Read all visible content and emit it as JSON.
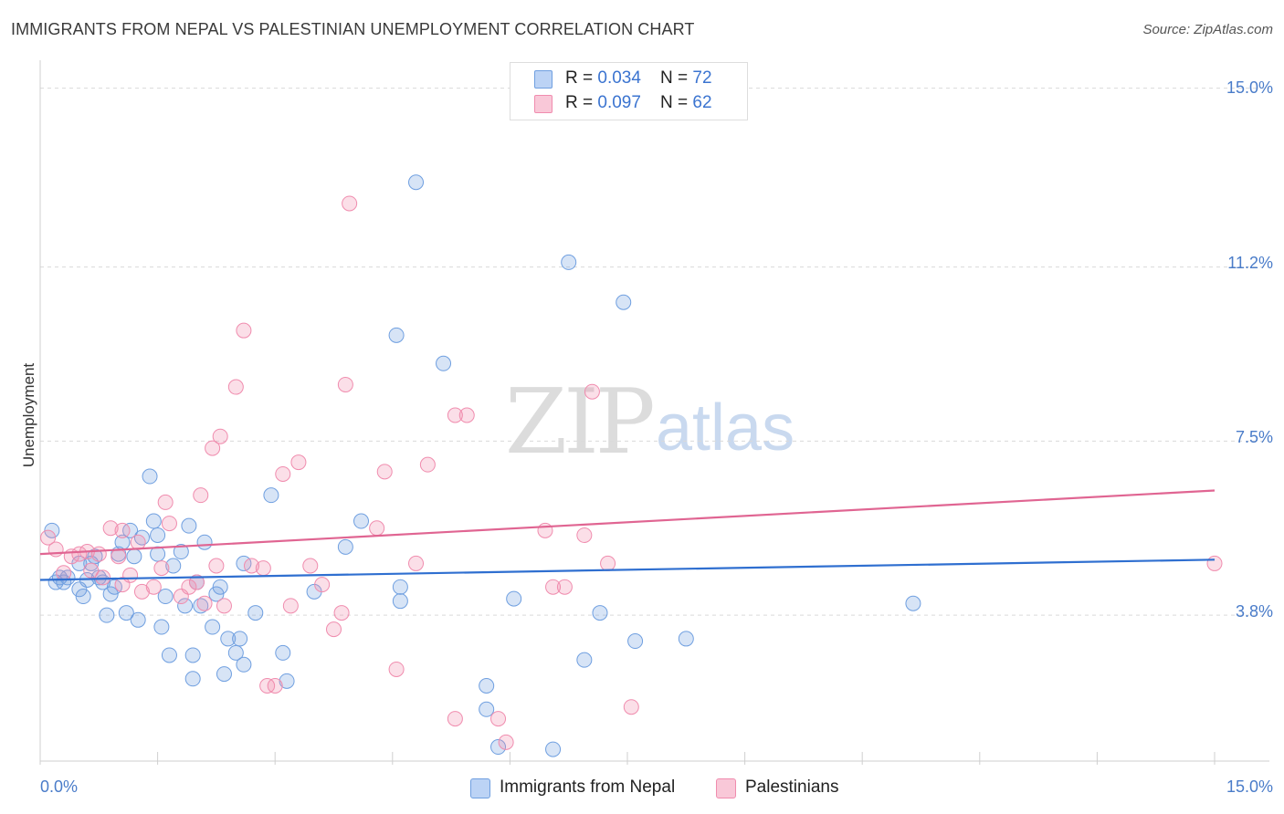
{
  "title": "IMMIGRANTS FROM NEPAL VS PALESTINIAN UNEMPLOYMENT CORRELATION CHART",
  "source": "Source: ZipAtlas.com",
  "watermark": {
    "zip": "ZIP",
    "atlas": "atlas"
  },
  "colors": {
    "blue": "#6f9fe0",
    "blue_line": "#2f6fd0",
    "pink": "#f08cae",
    "pink_line": "#e06592",
    "axis_text": "#4a7cc9"
  },
  "legend": {
    "rows": [
      {
        "r_label": "R = ",
        "r_value": "0.034",
        "n_label": "N = ",
        "n_value": "72"
      },
      {
        "r_label": "R = ",
        "r_value": "0.097",
        "n_label": "N = ",
        "n_value": "62"
      }
    ]
  },
  "bottom_legend": {
    "series1": "Immigrants from Nepal",
    "series2": "Palestinians"
  },
  "chart_data": {
    "type": "scatter",
    "title": "IMMIGRANTS FROM NEPAL VS PALESTINIAN UNEMPLOYMENT CORRELATION CHART",
    "xlabel": "",
    "ylabel": "Unemployment",
    "xlim": [
      0,
      15
    ],
    "ylim": [
      0.7,
      15.4
    ],
    "x_tick_labels": [
      "0.0%",
      "15.0%"
    ],
    "y_ticks": [
      {
        "value": 3.8,
        "label": "3.8%"
      },
      {
        "value": 7.5,
        "label": "7.5%"
      },
      {
        "value": 11.2,
        "label": "11.2%"
      },
      {
        "value": 15.0,
        "label": "15.0%"
      }
    ],
    "grid": "horizontal-dashed",
    "series": [
      {
        "name": "Immigrants from Nepal",
        "color": "#6f9fe0",
        "trend": {
          "x0": 0,
          "y0": 4.55,
          "x1": 15,
          "y1": 4.98
        },
        "points": [
          [
            0.15,
            5.6
          ],
          [
            0.25,
            4.6
          ],
          [
            0.3,
            4.5
          ],
          [
            0.5,
            4.35
          ],
          [
            0.2,
            4.5
          ],
          [
            0.35,
            4.6
          ],
          [
            0.5,
            4.9
          ],
          [
            0.55,
            4.2
          ],
          [
            0.6,
            4.55
          ],
          [
            0.7,
            5.05
          ],
          [
            0.75,
            4.6
          ],
          [
            0.8,
            4.5
          ],
          [
            0.9,
            4.25
          ],
          [
            0.95,
            4.4
          ],
          [
            1.05,
            5.35
          ],
          [
            1.15,
            5.6
          ],
          [
            1.2,
            5.05
          ],
          [
            1.3,
            5.45
          ],
          [
            1.4,
            6.75
          ],
          [
            1.45,
            5.8
          ],
          [
            1.5,
            5.1
          ],
          [
            1.6,
            4.2
          ],
          [
            1.7,
            4.85
          ],
          [
            1.8,
            5.15
          ],
          [
            1.85,
            4.0
          ],
          [
            1.9,
            5.7
          ],
          [
            2.05,
            4.0
          ],
          [
            2.1,
            5.35
          ],
          [
            2.25,
            4.25
          ],
          [
            2.3,
            4.4
          ],
          [
            2.55,
            3.3
          ],
          [
            2.6,
            4.9
          ],
          [
            2.75,
            3.85
          ],
          [
            1.1,
            3.85
          ],
          [
            1.25,
            3.7
          ],
          [
            1.55,
            3.55
          ],
          [
            0.85,
            3.8
          ],
          [
            2.2,
            3.55
          ],
          [
            2.4,
            3.3
          ],
          [
            2.5,
            3.0
          ],
          [
            1.65,
            2.95
          ],
          [
            1.95,
            2.95
          ],
          [
            2.35,
            2.55
          ],
          [
            2.6,
            2.75
          ],
          [
            1.95,
            2.45
          ],
          [
            3.15,
            2.4
          ],
          [
            3.1,
            3.0
          ],
          [
            2.95,
            6.35
          ],
          [
            3.9,
            5.25
          ],
          [
            4.1,
            5.8
          ],
          [
            3.5,
            4.3
          ],
          [
            4.6,
            4.4
          ],
          [
            4.6,
            4.1
          ],
          [
            4.8,
            13.0
          ],
          [
            4.55,
            9.75
          ],
          [
            5.15,
            9.15
          ],
          [
            6.75,
            11.3
          ],
          [
            7.45,
            10.45
          ],
          [
            5.7,
            2.3
          ],
          [
            5.7,
            1.8
          ],
          [
            5.85,
            1.0
          ],
          [
            6.55,
            0.95
          ],
          [
            6.95,
            2.85
          ],
          [
            7.15,
            3.85
          ],
          [
            7.6,
            3.25
          ],
          [
            8.25,
            3.3
          ],
          [
            6.05,
            4.15
          ],
          [
            11.15,
            4.05
          ],
          [
            0.65,
            4.9
          ],
          [
            1.0,
            5.1
          ],
          [
            1.5,
            5.5
          ],
          [
            2.0,
            4.5
          ]
        ]
      },
      {
        "name": "Palestinians",
        "color": "#f08cae",
        "trend": {
          "x0": 0,
          "y0": 5.1,
          "x1": 15,
          "y1": 6.45
        },
        "points": [
          [
            0.1,
            5.45
          ],
          [
            0.2,
            5.2
          ],
          [
            0.3,
            4.7
          ],
          [
            0.4,
            5.05
          ],
          [
            0.5,
            5.1
          ],
          [
            0.65,
            4.75
          ],
          [
            0.75,
            5.1
          ],
          [
            0.8,
            4.6
          ],
          [
            0.9,
            5.65
          ],
          [
            1.0,
            5.05
          ],
          [
            1.05,
            4.45
          ],
          [
            1.15,
            4.65
          ],
          [
            1.25,
            5.35
          ],
          [
            1.3,
            4.3
          ],
          [
            1.45,
            4.4
          ],
          [
            1.55,
            4.8
          ],
          [
            1.6,
            6.2
          ],
          [
            1.65,
            5.75
          ],
          [
            1.8,
            4.2
          ],
          [
            1.9,
            4.4
          ],
          [
            2.0,
            4.5
          ],
          [
            2.05,
            6.35
          ],
          [
            2.1,
            4.05
          ],
          [
            2.2,
            7.35
          ],
          [
            2.3,
            7.6
          ],
          [
            2.35,
            4.0
          ],
          [
            2.5,
            8.65
          ],
          [
            2.6,
            9.85
          ],
          [
            2.7,
            4.85
          ],
          [
            2.85,
            4.8
          ],
          [
            2.9,
            2.3
          ],
          [
            3.0,
            2.3
          ],
          [
            3.1,
            6.8
          ],
          [
            3.2,
            4.0
          ],
          [
            3.3,
            7.05
          ],
          [
            3.45,
            4.85
          ],
          [
            3.6,
            4.45
          ],
          [
            3.75,
            3.5
          ],
          [
            3.85,
            3.85
          ],
          [
            3.9,
            8.7
          ],
          [
            3.95,
            12.55
          ],
          [
            4.4,
            6.85
          ],
          [
            4.55,
            2.65
          ],
          [
            4.8,
            4.9
          ],
          [
            4.95,
            7.0
          ],
          [
            5.3,
            8.05
          ],
          [
            5.45,
            8.05
          ],
          [
            5.3,
            1.6
          ],
          [
            5.85,
            1.6
          ],
          [
            5.95,
            1.1
          ],
          [
            6.45,
            5.6
          ],
          [
            6.55,
            4.4
          ],
          [
            6.7,
            4.4
          ],
          [
            6.95,
            5.5
          ],
          [
            7.05,
            8.55
          ],
          [
            7.25,
            4.9
          ],
          [
            7.55,
            1.85
          ],
          [
            4.3,
            5.65
          ],
          [
            0.6,
            5.15
          ],
          [
            1.05,
            5.6
          ],
          [
            2.25,
            4.85
          ],
          [
            15.0,
            4.9
          ]
        ]
      }
    ]
  }
}
